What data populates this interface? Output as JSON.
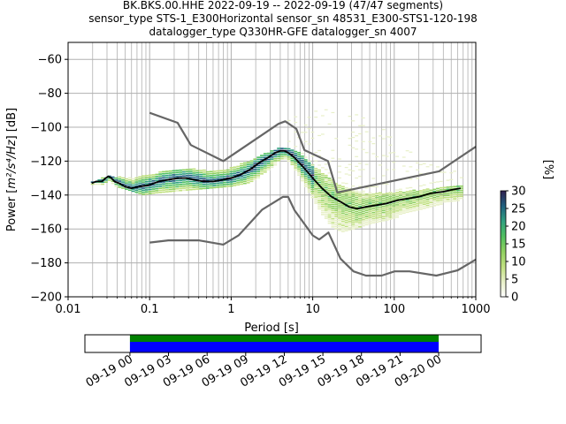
{
  "chart_data": [
    {
      "type": "heatmap",
      "title_lines": [
        "BK.BKS.00.HHE   2022-09-19 -- 2022-09-19  (47/47 segments)",
        "sensor_type STS-1_E300Horizontal sensor_sn 48531_E300-STS1-120-198",
        "datalogger_type Q330HR-GFE datalogger_sn 4007"
      ],
      "xlabel": "Period [s]",
      "ylabel_prefix": "Power [",
      "ylabel_unit": "m²/s⁴/Hz",
      "ylabel_suffix": "] [dB]",
      "xscale": "log",
      "xlim": [
        0.01,
        1000
      ],
      "ylim": [
        -200,
        -50
      ],
      "x_ticks": [
        0.01,
        0.1,
        1,
        10,
        100,
        1000
      ],
      "x_tick_labels": [
        "0.01",
        "0.1",
        "1",
        "10",
        "100",
        "1000"
      ],
      "y_ticks": [
        -200,
        -180,
        -160,
        -140,
        -120,
        -100,
        -80,
        -60
      ],
      "y_tick_labels": [
        "−200",
        "−180",
        "−160",
        "−140",
        "−120",
        "−100",
        "−80",
        "−60"
      ],
      "grid": true,
      "series": [
        {
          "role": "mode",
          "color": "#000000",
          "x": [
            0.0195,
            0.022,
            0.026,
            0.029,
            0.031,
            0.034,
            0.037,
            0.042,
            0.05,
            0.06,
            0.075,
            0.1,
            0.13,
            0.17,
            0.22,
            0.28,
            0.35,
            0.45,
            0.6,
            0.8,
            1.0,
            1.3,
            1.7,
            2.2,
            2.8,
            3.5,
            4.0,
            4.5,
            5.0,
            6.0,
            7.5,
            10,
            13,
            17,
            22,
            28,
            35,
            45,
            60,
            80,
            110,
            150,
            200,
            280,
            400,
            500,
            650
          ],
          "y": [
            -133,
            -132,
            -132,
            -130,
            -129,
            -130,
            -132,
            -133,
            -135,
            -136,
            -135,
            -134,
            -132,
            -131,
            -130,
            -130,
            -131,
            -132,
            -132,
            -131,
            -130,
            -128,
            -125,
            -121,
            -118,
            -115,
            -114,
            -114,
            -115,
            -118,
            -123,
            -130,
            -136,
            -141,
            -144,
            -147,
            -148,
            -147,
            -146,
            -145,
            -143,
            -142,
            -141,
            -139,
            -138,
            -137,
            -136
          ]
        },
        {
          "role": "noise-model-high",
          "color": "#666666",
          "x": [
            0.1,
            0.22,
            0.32,
            0.8,
            3.8,
            4.6,
            6.3,
            7.9,
            15.4,
            20,
            354.8,
            1000
          ],
          "y": [
            -91.5,
            -97.4,
            -110.5,
            -120,
            -98,
            -96.5,
            -101,
            -113.5,
            -120,
            -138.5,
            -126,
            -111.5
          ]
        },
        {
          "role": "noise-model-low",
          "color": "#666666",
          "x": [
            0.1,
            0.17,
            0.4,
            0.8,
            1.24,
            2.4,
            4.3,
            5.0,
            6.0,
            10.0,
            12.0,
            15.6,
            21.9,
            31.6,
            45,
            70,
            101,
            154,
            328,
            600,
            1000
          ],
          "y": [
            -168,
            -166.7,
            -166.7,
            -169.2,
            -163.7,
            -148.6,
            -141.1,
            -141.1,
            -149,
            -163.8,
            -166.2,
            -162.1,
            -177.5,
            -185,
            -187.5,
            -187.5,
            -185,
            -185,
            -187.5,
            -184.4,
            -178
          ]
        }
      ],
      "density_ridges": [
        {
          "label": "high",
          "x": [
            0.02,
            0.03,
            0.05,
            0.08,
            0.12,
            0.2,
            0.35,
            0.6,
            1.0,
            1.6,
            2.5,
            3.5,
            4.5,
            6,
            8,
            11,
            15,
            22,
            32,
            50,
            80,
            130,
            200,
            350,
            600
          ],
          "y": [
            -132,
            -129,
            -130,
            -129,
            -127,
            -125,
            -125,
            -126,
            -124,
            -120,
            -116,
            -113,
            -112,
            -114,
            -119,
            -125,
            -130,
            -135,
            -138,
            -139,
            -139,
            -138,
            -137,
            -136,
            -135
          ]
        },
        {
          "label": "low",
          "x": [
            0.02,
            0.03,
            0.05,
            0.08,
            0.12,
            0.2,
            0.35,
            0.6,
            1.0,
            1.6,
            2.5,
            3.5,
            4.5,
            6,
            8,
            11,
            15,
            22,
            32,
            50,
            80,
            130,
            200,
            350,
            600
          ],
          "y": [
            -134,
            -134,
            -137,
            -140,
            -139,
            -138,
            -137,
            -136,
            -135,
            -133,
            -128,
            -123,
            -120,
            -126,
            -136,
            -147,
            -158,
            -162,
            -160,
            -157,
            -155,
            -152,
            -150,
            -147,
            -146
          ]
        },
        {
          "label": "upper-scatter",
          "x": [
            4.5,
            7,
            10,
            15,
            22,
            32,
            50,
            80,
            130,
            220,
            400,
            700
          ],
          "y": [
            -97,
            -92,
            -90,
            -89,
            -90,
            -92,
            -96,
            -102,
            -110,
            -118,
            -124,
            -128
          ]
        }
      ],
      "colorbar": {
        "label": "[%]",
        "range": [
          0,
          30
        ],
        "ticks": [
          0,
          5,
          10,
          15,
          20,
          25,
          30
        ],
        "tick_labels": [
          "0",
          "5",
          "10",
          "15",
          "20",
          "25",
          "30"
        ],
        "colors": [
          "#ffffff",
          "#e8f0c8",
          "#c0e080",
          "#90d060",
          "#50c060",
          "#30a080",
          "#206080",
          "#302050"
        ]
      }
    },
    {
      "type": "timeline",
      "x_tick_labels": [
        "09-19 00",
        "09-19 03",
        "09-19 06",
        "09-19 09",
        "09-19 12",
        "09-19 15",
        "09-19 18",
        "09-19 21",
        "09-20 00"
      ],
      "xlim_hours": [
        -3.5,
        27.3
      ],
      "data_start_hours": 0,
      "data_end_hours": 24,
      "bars": [
        {
          "role": "data-coverage",
          "color": "#008000"
        },
        {
          "role": "psd-segments",
          "color": "#0000ff"
        }
      ]
    }
  ]
}
